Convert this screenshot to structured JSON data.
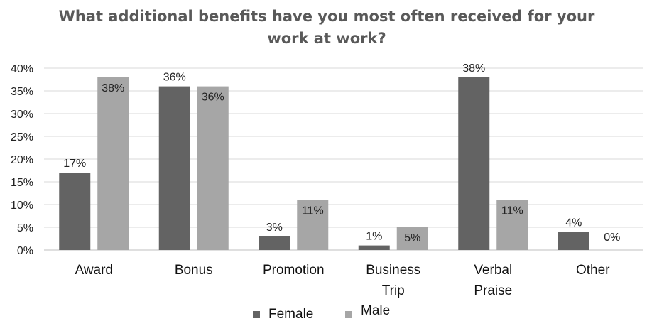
{
  "chart_data": {
    "type": "bar",
    "title": "What additional benefits have you most often received for your\nwork at work?",
    "categories": [
      [
        "Award"
      ],
      [
        "Bonus"
      ],
      [
        "Promotion"
      ],
      [
        "Business",
        "Trip"
      ],
      [
        "Verbal",
        "Praise"
      ],
      [
        "Other"
      ]
    ],
    "series": [
      {
        "name": "Female",
        "color": "#636363",
        "values": [
          17,
          36,
          3,
          1,
          38,
          4
        ]
      },
      {
        "name": "Male",
        "color": "#a6a6a6",
        "values": [
          38,
          36,
          11,
          5,
          11,
          0
        ]
      }
    ],
    "data_labels": [
      [
        "17%",
        "36%",
        "3%",
        "1%",
        "38%",
        "4%"
      ],
      [
        "38%",
        "36%",
        "11%",
        "5%",
        "11%",
        "0%"
      ]
    ],
    "y_ticks": [
      "0%",
      "5%",
      "10%",
      "15%",
      "20%",
      "25%",
      "30%",
      "35%",
      "40%"
    ],
    "ylim": [
      0,
      40
    ],
    "grid": true,
    "legend_position": "bottom"
  }
}
